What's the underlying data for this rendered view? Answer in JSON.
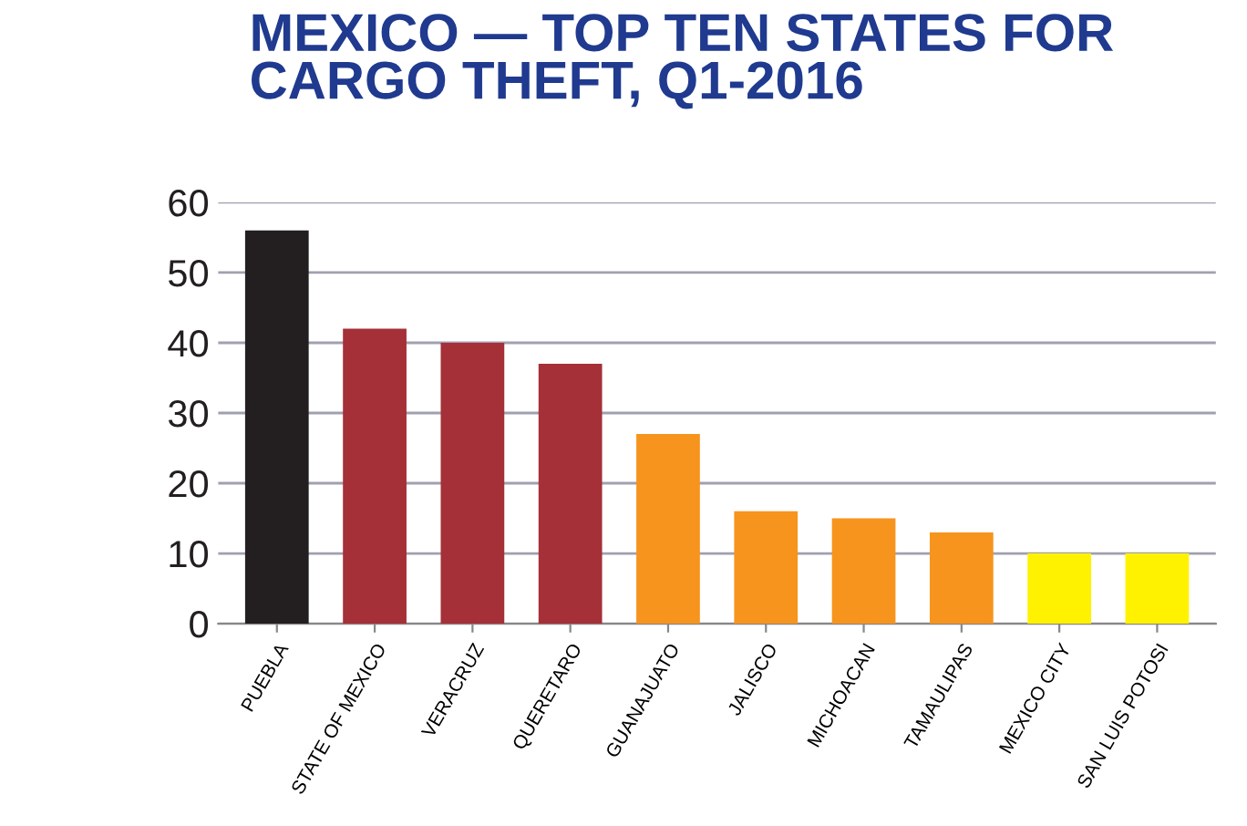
{
  "chart_data": {
    "type": "bar",
    "title": "MEXICO — TOP TEN STATES FOR\nCARGO THEFT, Q1-2016",
    "categories": [
      "PUEBLA",
      "STATE OF MEXICO",
      "VERACRUZ",
      "QUERETARO",
      "GUANAJUATO",
      "JALISCO",
      "MICHOACAN",
      "TAMAULIPAS",
      "MEXICO CITY",
      "SAN LUIS POTOSI"
    ],
    "values": [
      56,
      42,
      40,
      37,
      27,
      16,
      15,
      13,
      10,
      10
    ],
    "colors": [
      "#231f20",
      "#a53037",
      "#a53037",
      "#a53037",
      "#f7941e",
      "#f7941e",
      "#f7941e",
      "#f7941e",
      "#fff200",
      "#fff200"
    ],
    "ylim": [
      0,
      60
    ],
    "yticks": [
      0,
      10,
      20,
      30,
      40,
      50,
      60
    ],
    "grid": "y"
  }
}
